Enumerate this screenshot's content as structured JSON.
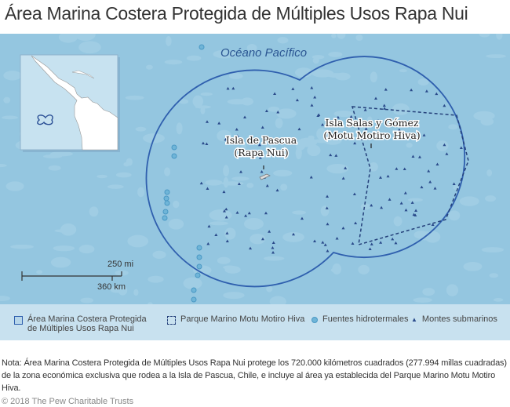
{
  "title": "Área Marina Costera Protegida de Múltiples Usos Rapa Nui",
  "map": {
    "ocean_label": "Océano Pacífico",
    "island1": [
      "Isla de Pascua",
      "(Rapa Nui)"
    ],
    "island2": [
      "Isla Salas y Gómez",
      "(Motu Motiro Hiva)"
    ],
    "scale": {
      "miles": "250 mi",
      "km": "360 km"
    },
    "colors": {
      "ocean": "#94c6e0",
      "boundary": "#2f5fae",
      "park": "#24407a",
      "vent": "#5aa9cf",
      "seamount": "#2a4a8a"
    }
  },
  "legend": {
    "items": [
      {
        "label": [
          "Área Marina Costera Protegida",
          "de Múltiples Usos Rapa Nui"
        ],
        "icon": "solid-square-icon"
      },
      {
        "label": [
          "Parque Marino Motu Motiro Hiva"
        ],
        "icon": "dashed-square-icon"
      },
      {
        "label": [
          "Fuentes hidrotermales"
        ],
        "icon": "circle-icon"
      },
      {
        "label": [
          "Montes submarinos"
        ],
        "icon": "triangle-icon"
      }
    ]
  },
  "note": "Nota: Área Marina Costera Protegida de Múltiples Usos Rapa Nui protege los 720.000 kilómetros cuadrados (277.994 millas cuadradas) de la zona económica exclusiva que rodea a la Isla de Pascua, Chile, e incluye al área ya establecida del Parque Marino Motu Motiro Hiva.",
  "credit": "© 2018 The Pew Charitable Trusts"
}
